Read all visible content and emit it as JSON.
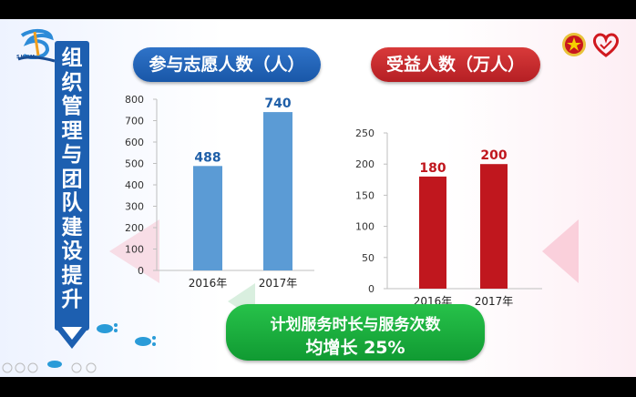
{
  "logo": {
    "text": "SHHM"
  },
  "sidebar_title": "组织管理与团队建设提升",
  "charts_header": {
    "volunteers_title": "参与志愿人数（人）",
    "beneficiaries_title": "受益人数（万人）"
  },
  "chart_data": [
    {
      "type": "bar",
      "title": "参与志愿人数（人）",
      "categories": [
        "2016年",
        "2017年"
      ],
      "values": [
        488,
        740
      ],
      "data_labels": [
        "488",
        "740"
      ],
      "yticks": [
        "0",
        "100",
        "200",
        "300",
        "400",
        "500",
        "600",
        "700",
        "800"
      ],
      "ylim": [
        0,
        800
      ],
      "color": "#5b9bd5",
      "label_color": "#1f5fa8",
      "xlabel": "",
      "ylabel": "",
      "grid": false
    },
    {
      "type": "bar",
      "title": "受益人数（万人）",
      "categories": [
        "2016年",
        "2017年"
      ],
      "values": [
        180,
        200
      ],
      "data_labels": [
        "180",
        "200"
      ],
      "yticks": [
        "0",
        "50",
        "100",
        "150",
        "200",
        "250"
      ],
      "ylim": [
        0,
        250
      ],
      "color": "#c0171e",
      "label_color": "#c0171e",
      "xlabel": "",
      "ylabel": "",
      "grid": false
    }
  ],
  "summary": {
    "line1": "计划服务时长与服务次数",
    "line2": "均增长 25%"
  },
  "icons": [
    "logo-icon",
    "youth-league-badge-icon",
    "heart-icon",
    "footprint-icon",
    "arrow-down-icon"
  ]
}
